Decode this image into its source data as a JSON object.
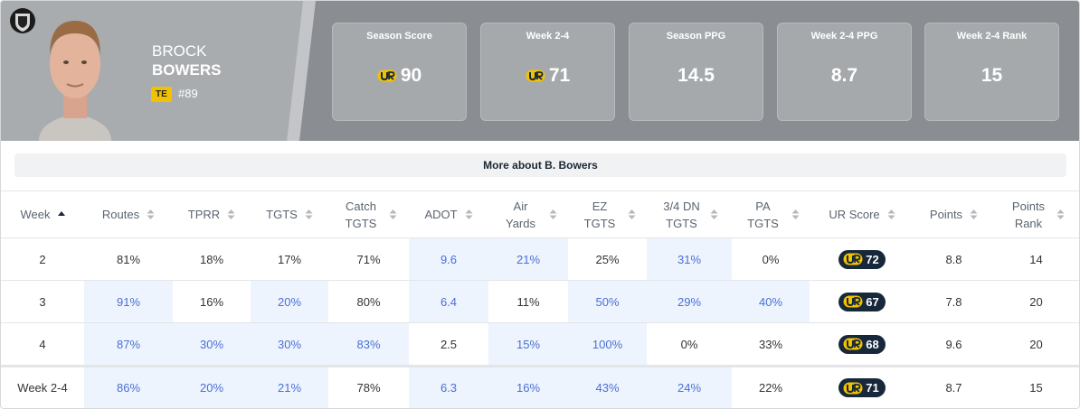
{
  "player": {
    "first_name": "BROCK",
    "last_name": "BOWERS",
    "position": "TE",
    "number": "#89"
  },
  "stats": [
    {
      "label": "Season Score",
      "value": 90
    },
    {
      "label": "Week 2-4",
      "value": 71
    },
    {
      "label": "Season PPG",
      "value": 14.5
    },
    {
      "label": "Week 2-4 PPG",
      "value": 8.7
    },
    {
      "label": "Week 2-4 Rank",
      "value": 15
    }
  ],
  "more_button": "More about B. Bowers",
  "table": {
    "columns": [
      "Week",
      "Routes",
      "TPRR",
      "TGTS",
      "Catch TGTS",
      "ADOT",
      "Air Yards",
      "EZ TGTS",
      "3/4 DN TGTS",
      "PA TGTS",
      "UR Score",
      "Points",
      "Points Rank"
    ],
    "rows": [
      [
        2,
        "81%",
        "18%",
        "17%",
        "71%",
        9.6,
        "21%",
        "25%",
        "31%",
        "0%",
        72,
        8.8,
        14
      ],
      [
        3,
        "91%",
        "16%",
        "20%",
        "80%",
        6.4,
        "11%",
        "50%",
        "29%",
        "40%",
        67,
        7.8,
        20
      ],
      [
        4,
        "87%",
        "30%",
        "30%",
        "83%",
        2.5,
        "15%",
        "100%",
        "0%",
        "33%",
        68,
        9.6,
        20
      ],
      [
        "Week 2-4",
        "86%",
        "20%",
        "21%",
        "78%",
        6.3,
        "16%",
        "43%",
        "24%",
        "22%",
        71,
        8.7,
        15
      ]
    ]
  }
}
